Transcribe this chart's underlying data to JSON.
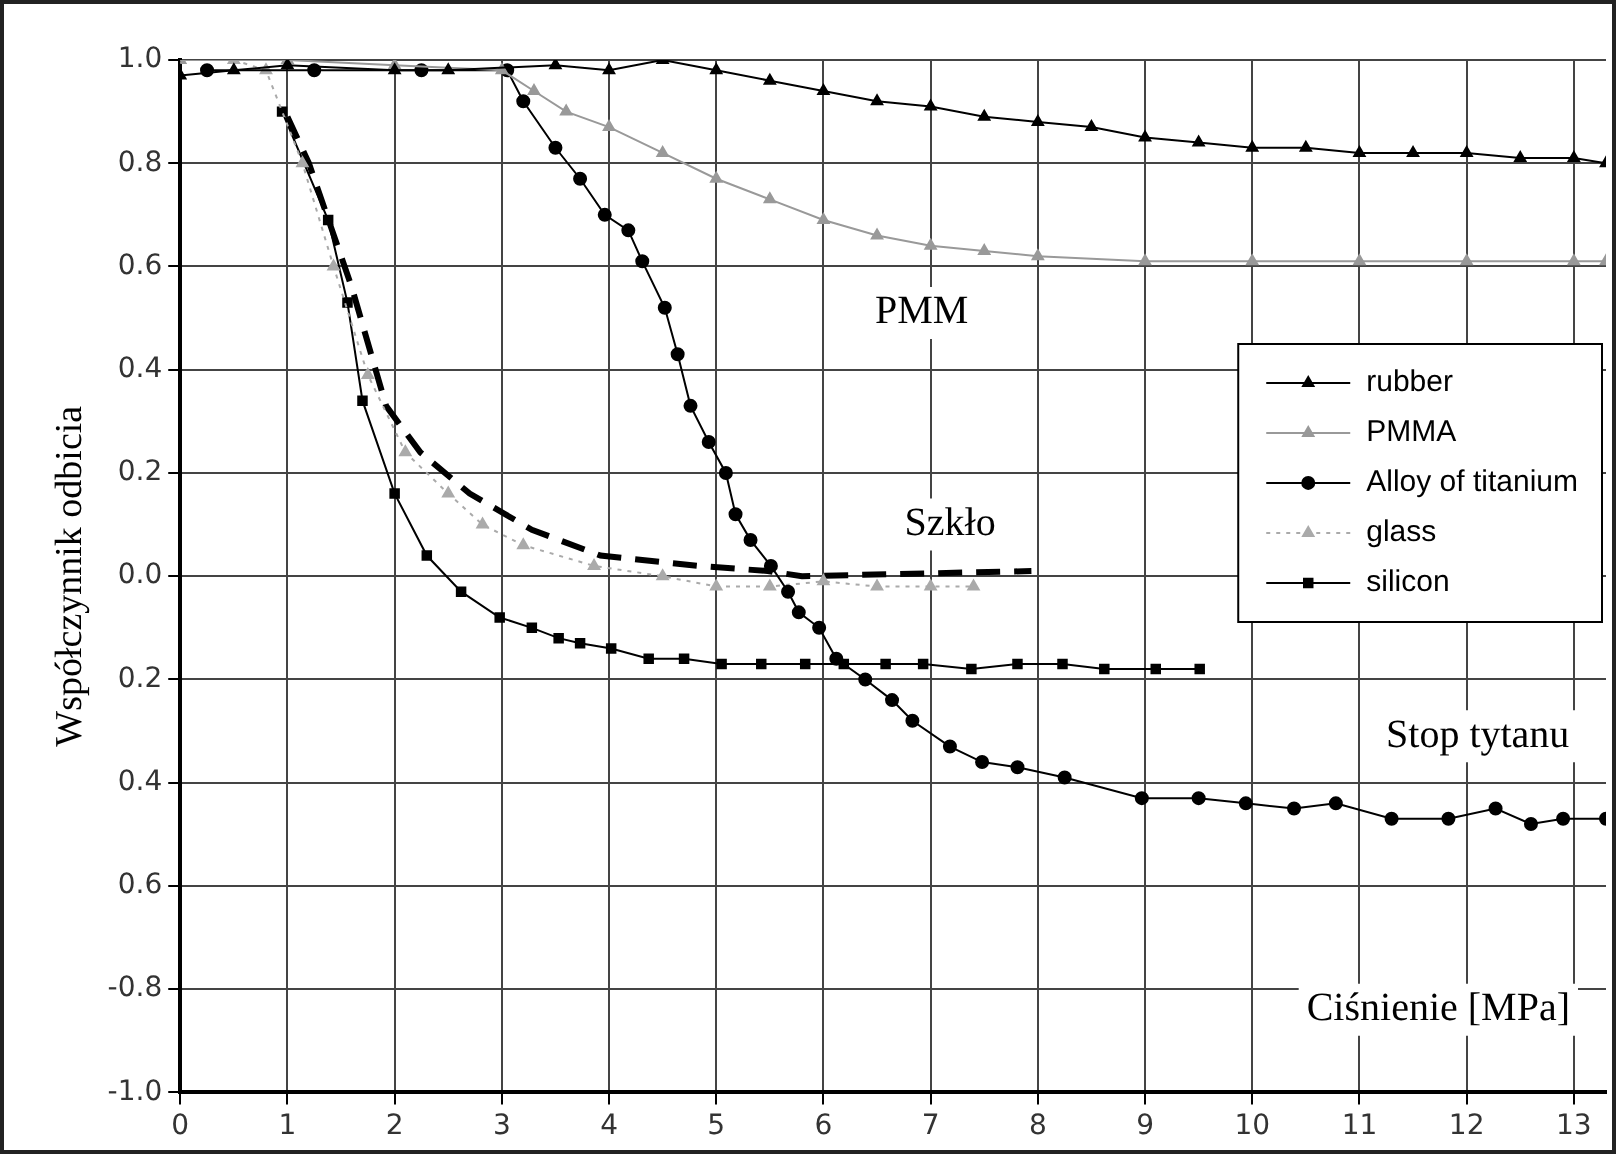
{
  "chart_data": {
    "type": "line",
    "xlabel": "Ciśnienie [MPa]",
    "ylabel": "Współczynnik odbicia",
    "xlim": [
      0,
      13.3
    ],
    "xticks": [
      0,
      1,
      2,
      3,
      4,
      5,
      6,
      7,
      8,
      9,
      10,
      11,
      12,
      13
    ],
    "ylim": [
      -1,
      1
    ],
    "yticks": [
      {
        "value": -1,
        "label": "-1.0"
      },
      {
        "value": -0.8,
        "label": "-0.8"
      },
      {
        "value": -0.6,
        "label": "0.6"
      },
      {
        "value": -0.4,
        "label": "0.4"
      },
      {
        "value": -0.2,
        "label": "0.2"
      },
      {
        "value": 0,
        "label": "0.0"
      },
      {
        "value": 0.2,
        "label": "0.2"
      },
      {
        "value": 0.4,
        "label": "0.4"
      },
      {
        "value": 0.6,
        "label": "0.6"
      },
      {
        "value": 0.8,
        "label": "0.8"
      },
      {
        "value": 1,
        "label": "1.0"
      }
    ],
    "grid": true,
    "legend": "center right",
    "annotations": [
      "PMM",
      "Szkło",
      "Stop tytanu"
    ],
    "series": [
      {
        "name": "rubber",
        "color": "#000000",
        "marker": "triangle",
        "line_style": "solid",
        "x": [
          0,
          0.5,
          1,
          2,
          2.5,
          3.5,
          4,
          4.5,
          5,
          5.5,
          6,
          6.5,
          7,
          7.5,
          8,
          8.5,
          9,
          9.5,
          10,
          10.5,
          11,
          11.5,
          12,
          12.5,
          13,
          13.3
        ],
        "values": [
          0.97,
          0.98,
          0.99,
          0.98,
          0.98,
          0.99,
          0.98,
          1.0,
          0.98,
          0.96,
          0.94,
          0.92,
          0.91,
          0.89,
          0.88,
          0.87,
          0.85,
          0.84,
          0.83,
          0.83,
          0.82,
          0.82,
          0.82,
          0.81,
          0.81,
          0.8
        ]
      },
      {
        "name": "PMMA",
        "color": "#999999",
        "marker": "triangle",
        "line_style": "solid",
        "x": [
          0,
          1,
          2,
          3,
          3.3,
          3.6,
          4,
          4.5,
          5,
          5.5,
          6,
          6.5,
          7,
          7.5,
          8,
          9,
          10,
          11,
          12,
          13,
          13.3
        ],
        "values": [
          1.0,
          1.0,
          0.99,
          0.98,
          0.94,
          0.9,
          0.87,
          0.82,
          0.77,
          0.73,
          0.69,
          0.66,
          0.64,
          0.63,
          0.62,
          0.61,
          0.61,
          0.61,
          0.61,
          0.61,
          0.61
        ]
      },
      {
        "name": "Alloy of titanium",
        "color": "#000000",
        "marker": "circle",
        "line_style": "solid",
        "x": [
          0.25,
          1.25,
          2.25,
          3.05,
          3.2,
          3.5,
          3.73,
          3.96,
          4.18,
          4.31,
          4.52,
          4.64,
          4.76,
          4.93,
          5.09,
          5.18,
          5.32,
          5.51,
          5.67,
          5.77,
          5.96,
          6.12,
          6.39,
          6.64,
          6.83,
          7.18,
          7.48,
          7.81,
          8.25,
          8.97,
          9.5,
          9.94,
          10.39,
          10.78,
          11.3,
          11.83,
          12.27,
          12.6,
          12.9,
          13.3
        ],
        "values": [
          0.98,
          0.98,
          0.98,
          0.98,
          0.92,
          0.83,
          0.77,
          0.7,
          0.67,
          0.61,
          0.52,
          0.43,
          0.33,
          0.26,
          0.2,
          0.12,
          0.07,
          0.02,
          -0.03,
          -0.07,
          -0.1,
          -0.16,
          -0.2,
          -0.24,
          -0.28,
          -0.33,
          -0.36,
          -0.37,
          -0.39,
          -0.43,
          -0.43,
          -0.44,
          -0.45,
          -0.44,
          -0.47,
          -0.47,
          -0.45,
          -0.48,
          -0.47,
          -0.47
        ]
      },
      {
        "name": "glass",
        "color": "#aaaaaa",
        "marker": "triangle",
        "line_style": "dotted",
        "x": [
          0.5,
          0.8,
          1.14,
          1.43,
          1.75,
          2.1,
          2.5,
          2.82,
          3.2,
          3.86,
          4.5,
          5,
          5.5,
          6,
          6.5,
          7,
          7.4
        ],
        "values": [
          1.0,
          0.98,
          0.8,
          0.6,
          0.39,
          0.24,
          0.16,
          0.1,
          0.06,
          0.02,
          0.0,
          -0.02,
          -0.02,
          -0.01,
          -0.02,
          -0.02,
          -0.02
        ]
      },
      {
        "name": "silicon",
        "color": "#000000",
        "marker": "square",
        "line_style": "solid",
        "x": [
          0.95,
          1.38,
          1.56,
          1.7,
          2.0,
          2.3,
          2.62,
          2.98,
          3.28,
          3.53,
          3.73,
          4.02,
          4.37,
          4.7,
          5.05,
          5.42,
          5.83,
          6.19,
          6.58,
          6.93,
          7.38,
          7.81,
          8.23,
          8.62,
          9.1,
          9.51
        ],
        "values": [
          0.9,
          0.69,
          0.53,
          0.34,
          0.16,
          0.04,
          -0.03,
          -0.08,
          -0.1,
          -0.12,
          -0.13,
          -0.14,
          -0.16,
          -0.16,
          -0.17,
          -0.17,
          -0.17,
          -0.17,
          -0.17,
          -0.17,
          -0.18,
          -0.17,
          -0.17,
          -0.18,
          -0.18,
          -0.18
        ]
      },
      {
        "color": "#000000",
        "marker": "none",
        "line_style": "dashed",
        "x": [
          1.0,
          1.2,
          1.6,
          1.92,
          2.24,
          2.7,
          3.28,
          3.92,
          4.83,
          5.48,
          5.8,
          7.94
        ],
        "values": [
          0.89,
          0.8,
          0.56,
          0.33,
          0.24,
          0.16,
          0.09,
          0.04,
          0.02,
          0.01,
          0.0,
          0.01
        ]
      }
    ]
  }
}
